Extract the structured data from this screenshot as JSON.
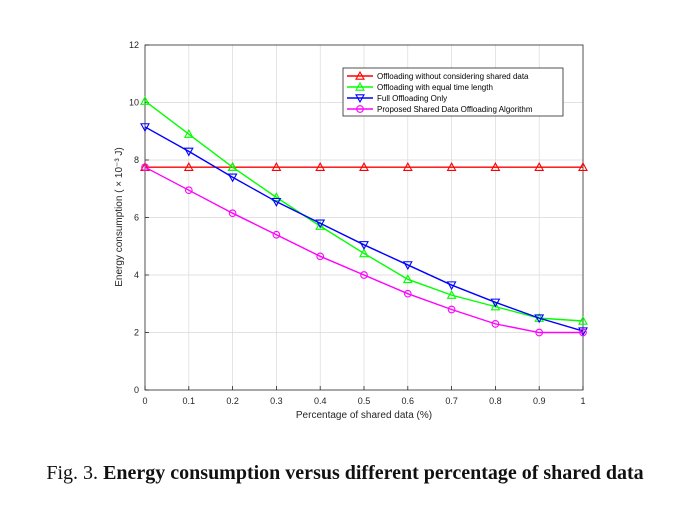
{
  "caption": {
    "label": "Fig. 3.",
    "text": "Energy consumption versus different percentage of shared data"
  },
  "chart_data": {
    "type": "line",
    "title": "",
    "xlabel": "Percentage of shared data (%)",
    "ylabel": "Energy consumption ( × 10⁻³ J)",
    "xlim": [
      0,
      1
    ],
    "ylim": [
      0,
      12
    ],
    "x": [
      0,
      0.1,
      0.2,
      0.3,
      0.4,
      0.5,
      0.6,
      0.7,
      0.8,
      0.9,
      1
    ],
    "x_tick_labels": [
      "0",
      "0.1",
      "0.2",
      "0.3",
      "0.4",
      "0.5",
      "0.6",
      "0.7",
      "0.8",
      "0.9",
      "1"
    ],
    "y_ticks": [
      0,
      2,
      4,
      6,
      8,
      10,
      12
    ],
    "y_tick_labels": [
      "0",
      "2",
      "4",
      "6",
      "8",
      "10",
      "12"
    ],
    "grid": true,
    "legend_position": "top-right",
    "series": [
      {
        "name": "Offloading without considering shared data",
        "color": "#ff0000",
        "marker": "triangle-up",
        "values": [
          7.75,
          7.75,
          7.75,
          7.75,
          7.75,
          7.75,
          7.75,
          7.75,
          7.75,
          7.75,
          7.75
        ]
      },
      {
        "name": "Offloading with equal time length",
        "color": "#00ff00",
        "marker": "triangle-up",
        "values": [
          10.05,
          8.9,
          7.75,
          6.7,
          5.7,
          4.75,
          3.85,
          3.3,
          2.9,
          2.5,
          2.4
        ]
      },
      {
        "name": "Full Offloading Only",
        "color": "#0000ff",
        "marker": "triangle-down",
        "values": [
          9.15,
          8.3,
          7.4,
          6.55,
          5.8,
          5.05,
          4.35,
          3.65,
          3.05,
          2.5,
          2.05
        ]
      },
      {
        "name": "Proposed Shared Data Offloading Algorithm",
        "color": "#ff00ff",
        "marker": "circle",
        "values": [
          7.75,
          6.95,
          6.15,
          5.4,
          4.65,
          4.0,
          3.35,
          2.8,
          2.3,
          2.0,
          2.0
        ]
      }
    ]
  }
}
